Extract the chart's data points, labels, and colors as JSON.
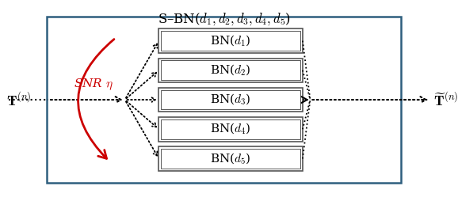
{
  "title": "S–BN($d_1,d_2,d_3,d_4,d_5$)",
  "input_label": "$\\mathbf{T}^{(n)}$",
  "output_label": "$\\widetilde{\\mathbf{T}}^{(n)}$",
  "snr_label": "SNR $\\eta$",
  "bn_labels": [
    "BN($d_1$)",
    "BN($d_2$)",
    "BN($d_3$)",
    "BN($d_4$)",
    "BN($d_5$)"
  ],
  "outer_box_color": "#2e5f7e",
  "bn_box_edge": "#555555",
  "arrow_color": "#000000",
  "snr_arrow_color": "#cc0000",
  "snr_label_color": "#cc0000",
  "title_fontsize": 12,
  "label_fontsize": 13,
  "bn_fontsize": 11,
  "figw": 5.78,
  "figh": 2.54,
  "dpi": 100
}
